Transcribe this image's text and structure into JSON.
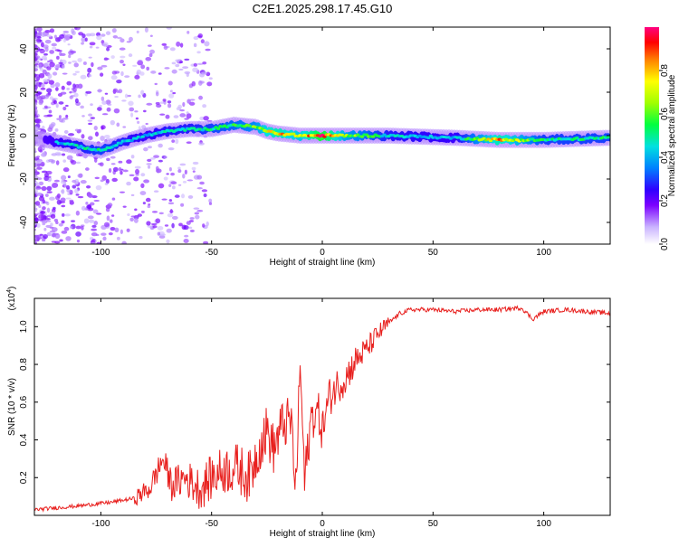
{
  "page_title": "C2E1.2025.298.17.45.G10",
  "chart_data": [
    {
      "type": "heatmap",
      "xlabel": "Height of straight line (km)",
      "ylabel": "Frequency (Hz)",
      "xlim": [
        -130,
        130
      ],
      "ylim": [
        -50,
        50
      ],
      "xticks": [
        -100,
        -50,
        0,
        50,
        100
      ],
      "xtick_labels": [
        "-100",
        "-50",
        "0",
        "50",
        "100"
      ],
      "yticks": [
        -40,
        -20,
        0,
        20,
        40
      ],
      "ytick_labels": [
        "-40",
        "-20",
        "0",
        "20",
        "40"
      ],
      "colorbar": {
        "label": "Normalized spectral amplitude",
        "range": [
          0,
          1
        ],
        "ticks": [
          0.0,
          0.2,
          0.4,
          0.6,
          0.8
        ],
        "tick_labels": [
          "0.0",
          "0.2",
          "0.4",
          "0.6",
          "0.8"
        ]
      },
      "ridge": [
        {
          "x": -110,
          "f": -5,
          "a": 0.45
        },
        {
          "x": -100,
          "f": -7,
          "a": 0.5
        },
        {
          "x": -90,
          "f": -3,
          "a": 0.45
        },
        {
          "x": -80,
          "f": 0,
          "a": 0.4
        },
        {
          "x": -70,
          "f": 2,
          "a": 0.45
        },
        {
          "x": -60,
          "f": 3,
          "a": 0.45
        },
        {
          "x": -50,
          "f": 3,
          "a": 0.5
        },
        {
          "x": -40,
          "f": 5,
          "a": 0.55
        },
        {
          "x": -30,
          "f": 4,
          "a": 0.6
        },
        {
          "x": -25,
          "f": 2,
          "a": 0.75
        },
        {
          "x": -20,
          "f": 1,
          "a": 0.8
        },
        {
          "x": -10,
          "f": 0,
          "a": 0.7
        },
        {
          "x": 0,
          "f": 0,
          "a": 0.95
        },
        {
          "x": 10,
          "f": 0,
          "a": 0.65
        },
        {
          "x": 30,
          "f": 0,
          "a": 0.45
        },
        {
          "x": 60,
          "f": -1,
          "a": 0.4
        },
        {
          "x": 80,
          "f": -2,
          "a": 0.8
        },
        {
          "x": 100,
          "f": -2,
          "a": 0.5
        },
        {
          "x": 130,
          "f": -1,
          "a": 0.5
        }
      ]
    },
    {
      "type": "line",
      "xlabel": "Height of straight line (km)",
      "ylabel": "SNR (10 * v/v)",
      "y_multiplier": "(x10",
      "y_multiplier_exp": "4",
      "y_multiplier_close": ")",
      "xlim": [
        -130,
        130
      ],
      "ylim": [
        0,
        1.15
      ],
      "xticks": [
        -100,
        -50,
        0,
        50,
        100
      ],
      "xtick_labels": [
        "-100",
        "-50",
        "0",
        "50",
        "100"
      ],
      "yticks": [
        0.2,
        0.4,
        0.6,
        0.8,
        1.0
      ],
      "ytick_labels": [
        "0.2",
        "0.4",
        "0.6",
        "0.8",
        "1.0"
      ],
      "color": "#e8201e",
      "series": [
        {
          "name": "SNR",
          "x": [
            -130,
            -110,
            -95,
            -85,
            -78,
            -72,
            -68,
            -62,
            -55,
            -50,
            -45,
            -38,
            -33,
            -28,
            -25,
            -22,
            -18,
            -14,
            -12,
            -10,
            -8,
            -5,
            -2,
            0,
            3,
            6,
            10,
            15,
            20,
            25,
            30,
            35,
            40,
            50,
            60,
            70,
            80,
            90,
            95,
            100,
            110,
            120,
            130
          ],
          "y": [
            0.03,
            0.05,
            0.07,
            0.09,
            0.14,
            0.3,
            0.16,
            0.2,
            0.14,
            0.2,
            0.24,
            0.25,
            0.2,
            0.38,
            0.45,
            0.35,
            0.48,
            0.5,
            0.12,
            0.8,
            0.18,
            0.52,
            0.55,
            0.45,
            0.62,
            0.68,
            0.72,
            0.82,
            0.88,
            0.96,
            1.02,
            1.07,
            1.09,
            1.09,
            1.08,
            1.09,
            1.09,
            1.1,
            1.04,
            1.08,
            1.09,
            1.08,
            1.07
          ]
        }
      ]
    }
  ]
}
